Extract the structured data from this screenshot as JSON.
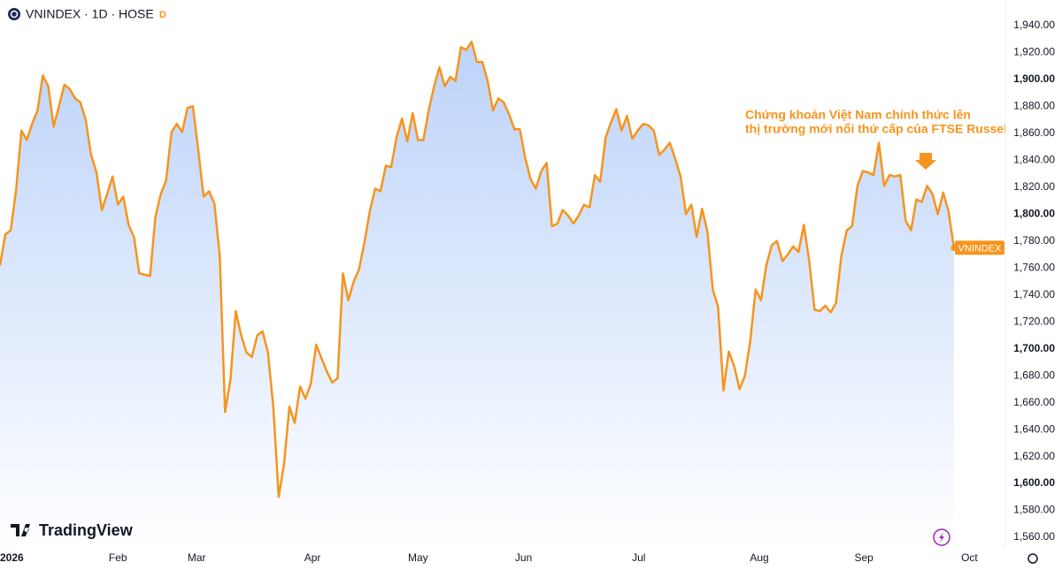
{
  "chart_data": {
    "type": "area",
    "title": "VNINDEX · 1D · HOSE",
    "badge": "D",
    "brand": "TradingView",
    "annotation": [
      "Chứng khoán Việt Nam chính thức lên",
      "thị trường mới nổi thứ cấp của FTSE Russell"
    ],
    "series": [
      {
        "name": "VNINDEX",
        "color": "#f7941d",
        "values": [
          1762,
          1785,
          1788,
          1818,
          1862,
          1855,
          1867,
          1877,
          1903,
          1895,
          1865,
          1880,
          1896,
          1893,
          1886,
          1883,
          1870,
          1844,
          1831,
          1803,
          1815,
          1828,
          1807,
          1813,
          1792,
          1783,
          1756,
          1755,
          1754,
          1798,
          1815,
          1825,
          1861,
          1867,
          1861,
          1879,
          1880,
          1847,
          1813,
          1817,
          1808,
          1769,
          1653,
          1677,
          1728,
          1710,
          1697,
          1694,
          1710,
          1713,
          1697,
          1657,
          1590,
          1614,
          1657,
          1645,
          1672,
          1663,
          1674,
          1703,
          1693,
          1683,
          1675,
          1678,
          1756,
          1736,
          1750,
          1759,
          1779,
          1802,
          1819,
          1817,
          1836,
          1835,
          1857,
          1871,
          1854,
          1875,
          1855,
          1855,
          1877,
          1895,
          1909,
          1895,
          1902,
          1899,
          1924,
          1922,
          1928,
          1913,
          1913,
          1899,
          1877,
          1886,
          1883,
          1874,
          1863,
          1863,
          1842,
          1826,
          1819,
          1832,
          1838,
          1791,
          1793,
          1803,
          1799,
          1793,
          1799,
          1807,
          1805,
          1829,
          1824,
          1857,
          1868,
          1878,
          1862,
          1873,
          1856,
          1862,
          1867,
          1866,
          1862,
          1844,
          1848,
          1853,
          1841,
          1828,
          1800,
          1807,
          1783,
          1804,
          1787,
          1744,
          1731,
          1669,
          1698,
          1687,
          1670,
          1680,
          1706,
          1744,
          1736,
          1762,
          1777,
          1780,
          1765,
          1770,
          1776,
          1772,
          1792,
          1765,
          1729,
          1728,
          1732,
          1727,
          1734,
          1769,
          1788,
          1791,
          1821,
          1832,
          1831,
          1829,
          1853,
          1821,
          1829,
          1828,
          1829,
          1795,
          1788,
          1811,
          1809,
          1821,
          1815,
          1800,
          1816,
          1802,
          1775
        ]
      }
    ],
    "xlim": [
      0,
      187.6
    ],
    "xticks": [
      {
        "value": 2.3,
        "label": "2026"
      },
      {
        "value": 22,
        "label": "Feb"
      },
      {
        "value": 36.7,
        "label": "Mar"
      },
      {
        "value": 58.3,
        "label": "Apr"
      },
      {
        "value": 78,
        "label": "May"
      },
      {
        "value": 97.7,
        "label": "Jun"
      },
      {
        "value": 119.2,
        "label": "Jul"
      },
      {
        "value": 141.7,
        "label": "Aug"
      },
      {
        "value": 161.2,
        "label": "Sep"
      },
      {
        "value": 180.9,
        "label": "Oct"
      }
    ],
    "ylim": [
      1560,
      1940
    ],
    "yticks": [
      {
        "value": 1560,
        "label": "1,560.00"
      },
      {
        "value": 1580,
        "label": "1,580.00"
      },
      {
        "value": 1600,
        "label": "1,600.00"
      },
      {
        "value": 1620,
        "label": "1,620.00"
      },
      {
        "value": 1640,
        "label": "1,640.00"
      },
      {
        "value": 1660,
        "label": "1,660.00"
      },
      {
        "value": 1680,
        "label": "1,680.00"
      },
      {
        "value": 1700,
        "label": "1,700.00"
      },
      {
        "value": 1720,
        "label": "1,720.00"
      },
      {
        "value": 1740,
        "label": "1,740.00"
      },
      {
        "value": 1760,
        "label": "1,760.00"
      },
      {
        "value": 1780,
        "label": "1,780.00"
      },
      {
        "value": 1800,
        "label": "1,800.00"
      },
      {
        "value": 1820,
        "label": "1,820.00"
      },
      {
        "value": 1840,
        "label": "1,840.00"
      },
      {
        "value": 1860,
        "label": "1,860.00"
      },
      {
        "value": 1880,
        "label": "1,880.00"
      },
      {
        "value": 1900,
        "label": "1,900.00"
      },
      {
        "value": 1920,
        "label": "1,920.00"
      },
      {
        "value": 1940,
        "label": "1,940.00"
      }
    ],
    "grid": false
  }
}
